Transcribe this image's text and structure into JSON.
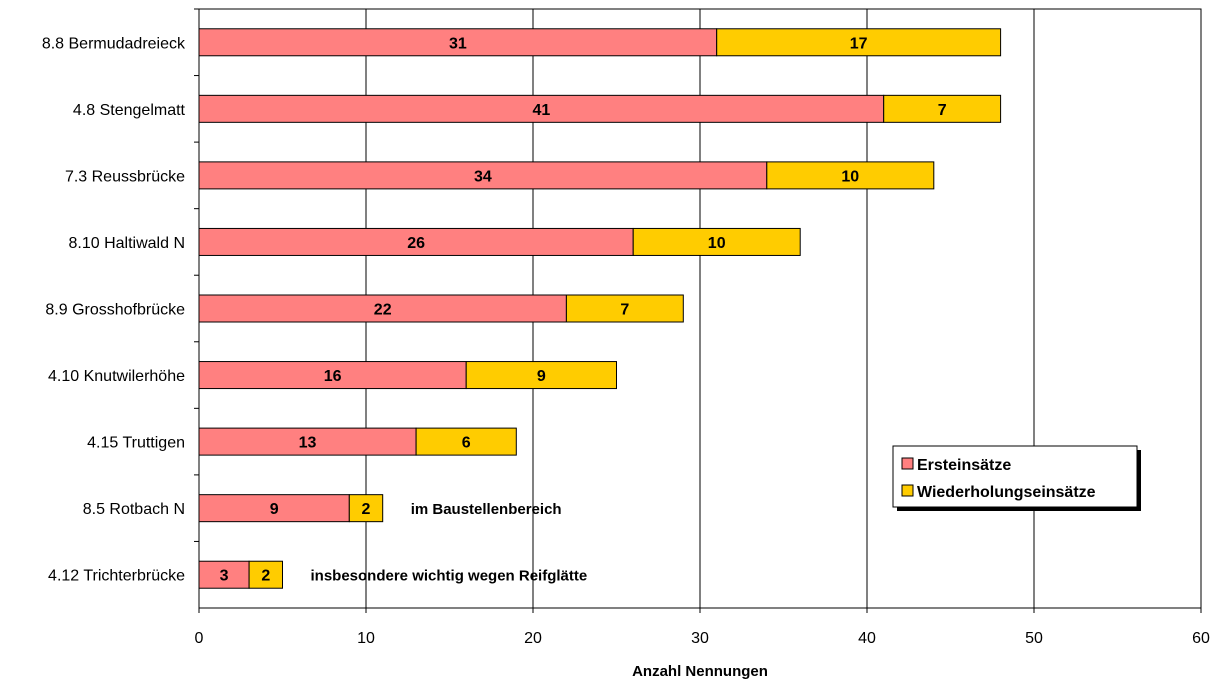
{
  "chart_data": {
    "type": "bar",
    "orientation": "horizontal",
    "stacked": true,
    "categories": [
      "8.8 Bermudadreieck",
      "4.8 Stengelmatt",
      "7.3 Reussbrücke",
      "8.10 Haltiwald N",
      "8.9 Grosshofbrücke",
      "4.10 Knutwilerhöhe",
      "4.15 Truttigen",
      "8.5 Rotbach N",
      "4.12 Trichterbrücke"
    ],
    "series": [
      {
        "name": "Ersteinsätze",
        "color": "#ff8080",
        "values": [
          31,
          41,
          34,
          26,
          22,
          16,
          13,
          9,
          3
        ]
      },
      {
        "name": "Wiederholungseinsätze",
        "color": "#ffcc00",
        "values": [
          17,
          7,
          10,
          10,
          7,
          9,
          6,
          2,
          2
        ]
      }
    ],
    "xlabel": "Anzahl Nennungen",
    "ylabel": "",
    "xlim": [
      0,
      60
    ],
    "xticks": [
      0,
      10,
      20,
      30,
      40,
      50,
      60
    ],
    "grid": "vertical",
    "legend_position": "right",
    "annotations": [
      {
        "category": "8.5 Rotbach N",
        "text": "im Baustellenbereich"
      },
      {
        "category": "4.12 Trichterbrücke",
        "text": "insbesondere wichtig wegen Reifglätte"
      }
    ]
  }
}
